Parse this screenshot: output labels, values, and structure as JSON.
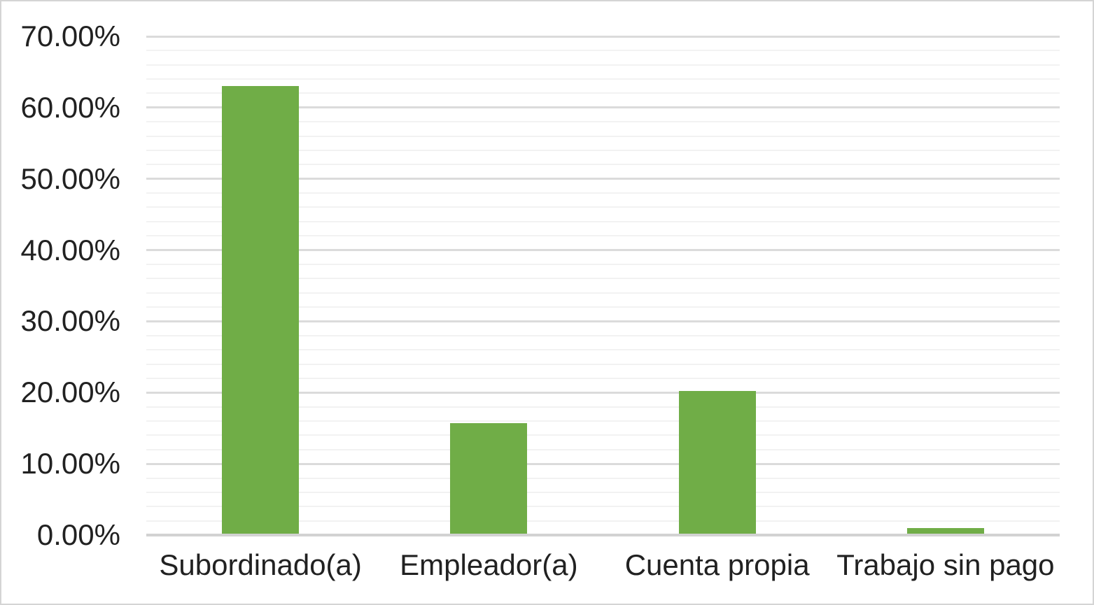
{
  "chart_data": {
    "type": "bar",
    "categories": [
      "Subordinado(a)",
      "Empleador(a)",
      "Cuenta propia",
      "Trabajo sin pago"
    ],
    "values": [
      63.0,
      15.7,
      20.2,
      1.0
    ],
    "ylim": [
      0,
      70
    ],
    "y_major_unit": 10,
    "y_minor_unit": 2,
    "y_tick_labels": [
      "0.00%",
      "10.00%",
      "20.00%",
      "30.00%",
      "40.00%",
      "50.00%",
      "60.00%",
      "70.00%"
    ],
    "grid": "horizontal major+minor",
    "legend": "none",
    "colors": {
      "bar": "#70AD47",
      "major_gridline": "#DBDBDB",
      "minor_gridline": "#F2F2F2",
      "axis_line": "#D2D2D2",
      "label_text": "#212121",
      "frame_border": "#D4D4D4",
      "background": "#FFFFFF"
    }
  }
}
